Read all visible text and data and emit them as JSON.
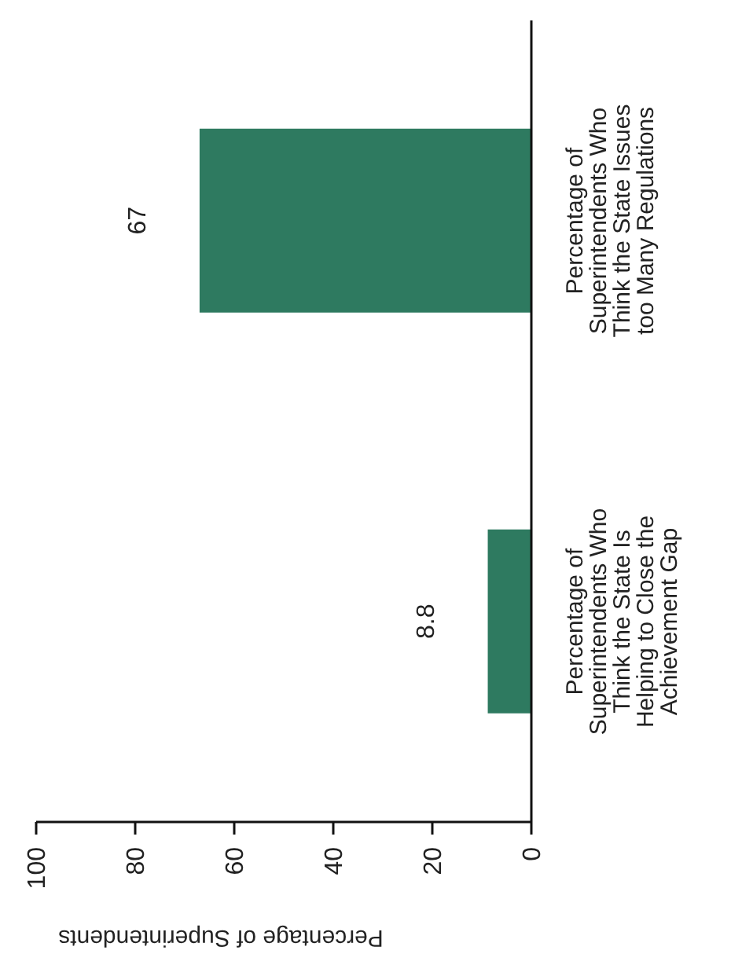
{
  "chart_data": {
    "type": "bar",
    "orientation": "horizontal",
    "xlabel": "Percentage of Superintendents",
    "categories": [
      "Percentage of Superintendents Who Think the State Issues too Many Regulations",
      "Percentage of Superintendents Who Think the State Is Helping to Close the Achievement Gap"
    ],
    "values": [
      67,
      8.8
    ],
    "color": "#2e7a60",
    "xlim": [
      100,
      0
    ],
    "xticks": [
      100,
      80,
      60,
      40,
      20,
      0
    ],
    "data_labels": true
  }
}
